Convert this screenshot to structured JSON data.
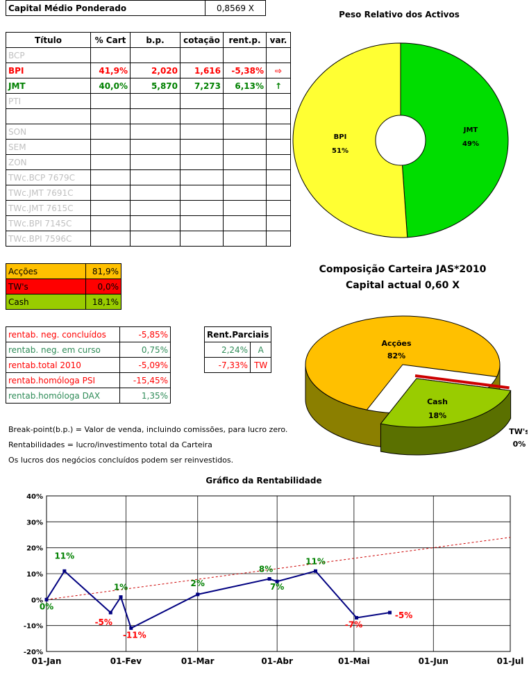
{
  "capital": {
    "label": "Capital Médio Ponderado",
    "value": "0,8569 X"
  },
  "assets": {
    "headers": [
      "Título",
      "% Cart",
      "b.p.",
      "cotação",
      "rent.p.",
      "var."
    ],
    "rows": [
      {
        "name": "BCP",
        "pct": "",
        "bp": "",
        "cot": "",
        "rent": "",
        "var": "",
        "cls": "grey"
      },
      {
        "name": "BPI",
        "pct": "41,9%",
        "bp": "2,020",
        "cot": "1,616",
        "rent": "-5,38%",
        "var": "⇨",
        "cls": "red"
      },
      {
        "name": "JMT",
        "pct": "40,0%",
        "bp": "5,870",
        "cot": "7,273",
        "rent": "6,13%",
        "var": "↑",
        "cls": "green"
      },
      {
        "name": "PTI",
        "pct": "",
        "bp": "",
        "cot": "",
        "rent": "",
        "var": "",
        "cls": "grey"
      },
      {
        "name": "",
        "pct": "",
        "bp": "",
        "cot": "",
        "rent": "",
        "var": "",
        "cls": "grey"
      },
      {
        "name": "SON",
        "pct": "",
        "bp": "",
        "cot": "",
        "rent": "",
        "var": "",
        "cls": "grey"
      },
      {
        "name": "SEM",
        "pct": "",
        "bp": "",
        "cot": "",
        "rent": "",
        "var": "",
        "cls": "grey"
      },
      {
        "name": "ZON",
        "pct": "",
        "bp": "",
        "cot": "",
        "rent": "",
        "var": "",
        "cls": "grey"
      },
      {
        "name": "TWc.BCP 7679C",
        "pct": "",
        "bp": "",
        "cot": "",
        "rent": "",
        "var": "",
        "cls": "grey"
      },
      {
        "name": "TWc.JMT 7691C",
        "pct": "",
        "bp": "",
        "cot": "",
        "rent": "",
        "var": "",
        "cls": "grey"
      },
      {
        "name": "TWc.JMT 7615C",
        "pct": "",
        "bp": "",
        "cot": "",
        "rent": "",
        "var": "",
        "cls": "grey"
      },
      {
        "name": "TWc.BPI 7145C",
        "pct": "",
        "bp": "",
        "cot": "",
        "rent": "",
        "var": "",
        "cls": "grey"
      },
      {
        "name": "TWc.BPI 7596C",
        "pct": "",
        "bp": "",
        "cot": "",
        "rent": "",
        "var": "",
        "cls": "grey"
      }
    ]
  },
  "composition": [
    {
      "label": "Acções",
      "value": "81,9%",
      "color": "#ffc000"
    },
    {
      "label": "TW's",
      "value": "0,0%",
      "color": "#ff0000"
    },
    {
      "label": "Cash",
      "value": "18,1%",
      "color": "#99cc00"
    }
  ],
  "returns": [
    {
      "label": "rentab. neg. concluídos",
      "value": "-5,85%",
      "color": "#ff0000"
    },
    {
      "label": "rentab. neg. em curso",
      "value": "0,75%",
      "color": "#2e8b57"
    },
    {
      "label": "rentab.total 2010",
      "value": "-5,09%",
      "color": "#ff0000"
    },
    {
      "label": "rentab.homóloga PSI",
      "value": "-15,45%",
      "color": "#ff0000"
    },
    {
      "label": "rentab.homóloga DAX",
      "value": "1,35%",
      "color": "#2e8b57"
    }
  ],
  "partials": {
    "header": "Rent.Parciais",
    "rows": [
      {
        "value": "2,24%",
        "tag": "A",
        "color": "#2e8b57"
      },
      {
        "value": "-7,33%",
        "tag": "TW",
        "color": "#ff0000"
      }
    ]
  },
  "notes": [
    "Break-point(b.p.) = Valor de venda, incluindo comissões, para lucro zero.",
    "Rentabilidades = lucro/investimento total da Carteira",
    "Os lucros dos negócios concluídos podem ser reinvestidos."
  ],
  "chart_data": [
    {
      "type": "pie",
      "title": "Peso Relativo dos Activos",
      "labels": [
        "BPI",
        "JMT"
      ],
      "values": [
        51,
        49
      ],
      "value_labels": [
        "51%",
        "49%"
      ],
      "colors": [
        "#ffff33",
        "#00dd00"
      ],
      "donut": true
    },
    {
      "type": "pie",
      "title": "Composição Carteira JAS*2010",
      "subtitle": "Capital actual 0,60 X",
      "labels": [
        "Acções",
        "TW's",
        "Cash"
      ],
      "values": [
        82,
        0,
        18
      ],
      "value_labels": [
        "82%",
        "0%",
        "18%"
      ],
      "colors": [
        "#ffc000",
        "#cc0000",
        "#99cc00"
      ],
      "style": "3d"
    },
    {
      "type": "line",
      "title": "Gráfico da Rentabilidade",
      "x_ticks": [
        "01-Jan",
        "01-Fev",
        "01-Mar",
        "01-Abr",
        "01-Mai",
        "01-Jun",
        "01-Jul"
      ],
      "y_ticks": [
        "-20%",
        "-10%",
        "0%",
        "10%",
        "20%",
        "30%",
        "40%"
      ],
      "ylim": [
        -20,
        40
      ],
      "xlim": [
        "2010-01-01",
        "2010-07-01"
      ],
      "series": [
        {
          "x": [
            "2010-01-01",
            "2010-01-08",
            "2010-01-26",
            "2010-01-30",
            "2010-02-03",
            "2010-03-01",
            "2010-03-29",
            "2010-04-01",
            "2010-04-16",
            "2010-05-02",
            "2010-05-15"
          ],
          "values": [
            0,
            11,
            -5,
            1,
            -11,
            2,
            8,
            7,
            11,
            -7,
            -5
          ],
          "point_labels": [
            "0%",
            "11%",
            "-5%",
            "1%",
            "-11%",
            "2%",
            "8%",
            "7%",
            "11%",
            "-7%",
            "-5%"
          ],
          "color": "#000080"
        },
        {
          "style": "dashed",
          "color": "#cc0000",
          "x": [
            "2010-01-01",
            "2010-07-01"
          ],
          "values": [
            0,
            24
          ]
        }
      ]
    }
  ]
}
